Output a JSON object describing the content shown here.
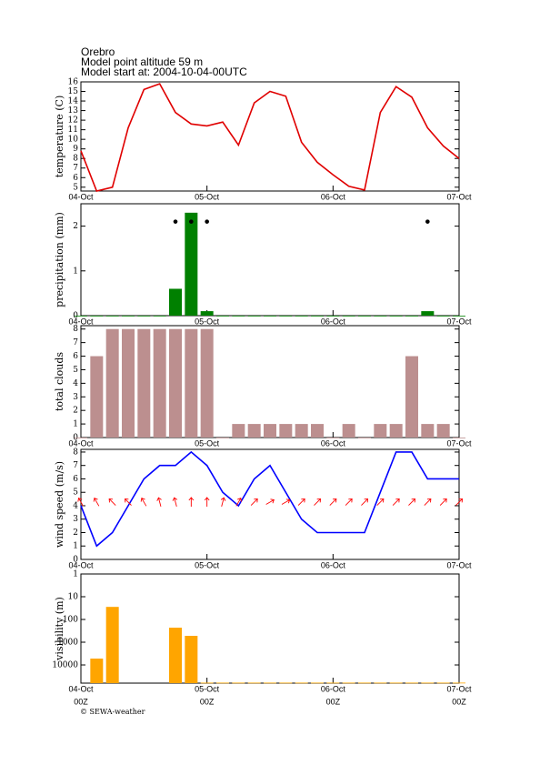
{
  "header": {
    "location": "Orebro",
    "altitude": "Model point altitude  59 m",
    "model_start": "Model start at: 2004-10-04-00UTC"
  },
  "footer": "© SEWA-weather",
  "chart_data": [
    {
      "type": "line",
      "ylabel": "temperature (C)",
      "color": "#e00000",
      "x": [
        0,
        3,
        6,
        9,
        12,
        15,
        18,
        21,
        24,
        27,
        30,
        33,
        36,
        39,
        42,
        45,
        48,
        51,
        54,
        57,
        60,
        63,
        66,
        69,
        72
      ],
      "values": [
        8.8,
        4.6,
        5.0,
        11.2,
        15.2,
        15.8,
        12.8,
        11.6,
        11.4,
        11.8,
        9.4,
        13.8,
        15.0,
        14.5,
        9.7,
        7.6,
        6.3,
        5.1,
        4.7,
        12.8,
        15.5,
        14.4,
        11.2,
        9.3,
        8.0
      ],
      "xlim": [
        0,
        72
      ],
      "xticks": [
        {
          "value": 0,
          "label": "04-Oct"
        },
        {
          "value": 24,
          "label": "05-Oct"
        },
        {
          "value": 48,
          "label": "06-Oct"
        },
        {
          "value": 72,
          "label": "07-Oct"
        }
      ],
      "ylim": [
        4.6,
        16
      ],
      "yticks": [
        5,
        6,
        7,
        8,
        9,
        10,
        11,
        12,
        13,
        14,
        15,
        16
      ]
    },
    {
      "type": "bar",
      "ylabel": "precipitation (mm)",
      "color": "#008000",
      "symbol_color": "#000000",
      "x": [
        0,
        3,
        6,
        9,
        12,
        15,
        18,
        21,
        24,
        27,
        30,
        33,
        36,
        39,
        42,
        45,
        48,
        51,
        54,
        57,
        60,
        63,
        66,
        69,
        72
      ],
      "values": [
        0,
        0,
        0,
        0,
        0,
        0,
        0.6,
        2.3,
        0.1,
        0,
        0,
        0,
        0,
        0,
        0,
        0,
        0,
        0,
        0,
        0,
        0,
        0,
        0.1,
        0,
        0
      ],
      "symbol_values": [
        null,
        null,
        null,
        null,
        null,
        null,
        2.1,
        2.1,
        2.1,
        null,
        null,
        null,
        null,
        null,
        null,
        null,
        null,
        null,
        null,
        null,
        null,
        null,
        2.1,
        null,
        null
      ],
      "xlim": [
        0,
        72
      ],
      "xticks": [
        {
          "value": 0,
          "label": "04-Oct"
        },
        {
          "value": 24,
          "label": "05-Oct"
        },
        {
          "value": 48,
          "label": "06-Oct"
        },
        {
          "value": 72,
          "label": "07-Oct"
        }
      ],
      "ylim": [
        0,
        2.5
      ],
      "yticks": [
        0,
        1,
        2
      ]
    },
    {
      "type": "bar",
      "ylabel": "total clouds",
      "color": "#bc8f8f",
      "x": [
        0,
        3,
        6,
        9,
        12,
        15,
        18,
        21,
        24,
        27,
        30,
        33,
        36,
        39,
        42,
        45,
        48,
        51,
        54,
        57,
        60,
        63,
        66,
        69,
        72
      ],
      "values": [
        0,
        6,
        8,
        8,
        8,
        8,
        8,
        8,
        8,
        0,
        1,
        1,
        1,
        1,
        1,
        1,
        0,
        1,
        0,
        1,
        1,
        6,
        1,
        1,
        0
      ],
      "xlim": [
        0,
        72
      ],
      "xticks": [
        {
          "value": 0,
          "label": "04-Oct"
        },
        {
          "value": 24,
          "label": "05-Oct"
        },
        {
          "value": 48,
          "label": "06-Oct"
        },
        {
          "value": 72,
          "label": "07-Oct"
        }
      ],
      "ylim": [
        0,
        8.25
      ],
      "yticks": [
        0,
        1,
        2,
        3,
        4,
        5,
        6,
        7,
        8
      ]
    },
    {
      "type": "line",
      "ylabel": "wind speed (m/s)",
      "color": "#0000ff",
      "arrow_color": "#ff0000",
      "x": [
        0,
        3,
        6,
        9,
        12,
        15,
        18,
        21,
        24,
        27,
        30,
        33,
        36,
        39,
        42,
        45,
        48,
        51,
        54,
        57,
        60,
        63,
        66,
        69,
        72
      ],
      "values": [
        4,
        1,
        2,
        4,
        6,
        7,
        7,
        8,
        7,
        5,
        4,
        6,
        7,
        5,
        3,
        2,
        2,
        2,
        2,
        5,
        8,
        8,
        6,
        6,
        6
      ],
      "wind_direction": [
        330,
        330,
        315,
        315,
        330,
        345,
        345,
        0,
        0,
        15,
        30,
        45,
        60,
        60,
        45,
        45,
        45,
        45,
        45,
        45,
        45,
        45,
        45,
        45,
        45
      ],
      "xlim": [
        0,
        72
      ],
      "xticks": [
        {
          "value": 0,
          "label": "04-Oct"
        },
        {
          "value": 24,
          "label": "05-Oct"
        },
        {
          "value": 48,
          "label": "06-Oct"
        },
        {
          "value": 72,
          "label": "07-Oct"
        }
      ],
      "ylim": [
        0,
        8.2
      ],
      "yticks": [
        0,
        1,
        2,
        3,
        4,
        5,
        6,
        7,
        8
      ]
    },
    {
      "type": "bar",
      "ylabel": "visibility (m)",
      "color": "#ffa500",
      "log": true,
      "inverted": true,
      "x": [
        0,
        3,
        6,
        9,
        12,
        15,
        18,
        21,
        24,
        27,
        30,
        33,
        36,
        39,
        42,
        45,
        48,
        51,
        54,
        57,
        60,
        63,
        66,
        69,
        72
      ],
      "values": [
        null,
        5250,
        28,
        null,
        null,
        null,
        230,
        525,
        60000,
        60000,
        60000,
        60000,
        60000,
        60000,
        60000,
        60000,
        60000,
        60000,
        60000,
        60000,
        60000,
        60000,
        60000,
        60000,
        60000
      ],
      "xlim": [
        0,
        72
      ],
      "xticks": [
        {
          "value": 0,
          "label": "04-Oct"
        },
        {
          "value": 24,
          "label": "05-Oct"
        },
        {
          "value": 48,
          "label": "06-Oct"
        },
        {
          "value": 72,
          "label": "07-Oct"
        }
      ],
      "xtick_sublabels": [
        "00Z",
        "00Z",
        "00Z",
        "00Z"
      ],
      "ylim": [
        1,
        63000
      ],
      "yticks": [
        1,
        10,
        100,
        1000,
        10000
      ]
    }
  ]
}
